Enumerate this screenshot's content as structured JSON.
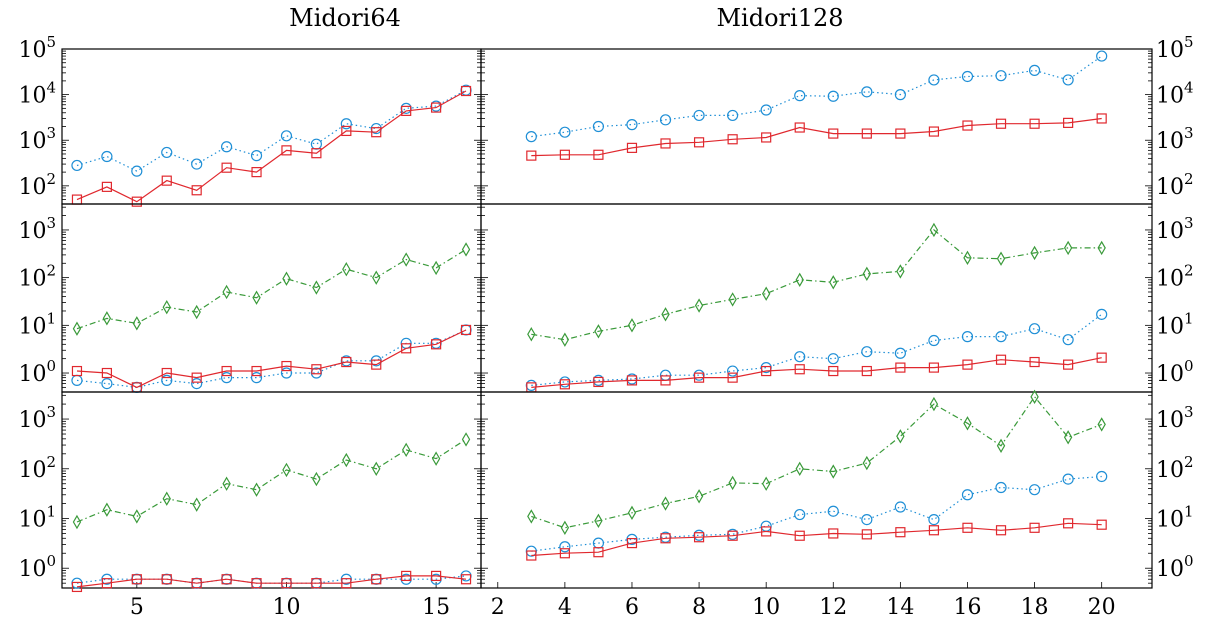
{
  "titles": {
    "left": "Midori64",
    "right": "Midori128"
  },
  "colors": {
    "blue": "#1f8fd6",
    "red": "#e0282e",
    "green": "#3a9a3a",
    "axis": "#000000"
  },
  "chart_data": [
    {
      "type": "line",
      "panel": "left-top",
      "yscale": "log",
      "ylim": [
        40,
        100000
      ],
      "xlim": [
        2.5,
        16.5
      ],
      "yticks": [
        {
          "v": 100,
          "m": "2"
        },
        {
          "v": 1000,
          "m": "3"
        },
        {
          "v": 10000,
          "m": "4"
        },
        {
          "v": 100000,
          "m": "5"
        }
      ],
      "ytick_side": "left",
      "xtick_labels": false,
      "series": [
        {
          "color": "blue",
          "marker": "circle",
          "dash": "dotted",
          "x": [
            3,
            4,
            5,
            6,
            7,
            8,
            9,
            10,
            11,
            12,
            13,
            14,
            15,
            16
          ],
          "y": [
            280,
            440,
            210,
            540,
            300,
            720,
            460,
            1250,
            820,
            2300,
            1800,
            5000,
            5600,
            12500
          ]
        },
        {
          "color": "red",
          "marker": "square",
          "dash": "solid",
          "x": [
            3,
            4,
            5,
            6,
            7,
            8,
            9,
            10,
            11,
            12,
            13,
            14,
            15,
            16
          ],
          "y": [
            50,
            95,
            45,
            130,
            80,
            250,
            200,
            600,
            520,
            1600,
            1500,
            4400,
            5200,
            12000
          ]
        }
      ]
    },
    {
      "type": "line",
      "panel": "right-top",
      "yscale": "log",
      "ylim": [
        40,
        100000
      ],
      "xlim": [
        1.5,
        21.5
      ],
      "yticks": [
        {
          "v": 100,
          "m": "2"
        },
        {
          "v": 1000,
          "m": "3"
        },
        {
          "v": 10000,
          "m": "4"
        },
        {
          "v": 100000,
          "m": "5"
        }
      ],
      "ytick_side": "right",
      "xtick_labels": false,
      "series": [
        {
          "color": "blue",
          "marker": "circle",
          "dash": "dotted",
          "x": [
            3,
            4,
            5,
            6,
            7,
            8,
            9,
            10,
            11,
            12,
            13,
            14,
            15,
            16,
            17,
            18,
            19,
            20
          ],
          "y": [
            1200,
            1500,
            2000,
            2200,
            2800,
            3500,
            3500,
            4600,
            9500,
            9200,
            11500,
            10000,
            21000,
            25000,
            26000,
            34000,
            21000,
            70000
          ]
        },
        {
          "color": "red",
          "marker": "square",
          "dash": "solid",
          "x": [
            3,
            4,
            5,
            6,
            7,
            8,
            9,
            10,
            11,
            12,
            13,
            14,
            15,
            16,
            17,
            18,
            19,
            20
          ],
          "y": [
            460,
            480,
            480,
            680,
            850,
            900,
            1050,
            1150,
            1900,
            1400,
            1400,
            1400,
            1550,
            2100,
            2300,
            2300,
            2400,
            3000
          ]
        }
      ]
    },
    {
      "type": "line",
      "panel": "left-middle",
      "yscale": "log",
      "ylim": [
        0.4,
        3500
      ],
      "xlim": [
        2.5,
        16.5
      ],
      "yticks": [
        {
          "v": 1,
          "m": "0"
        },
        {
          "v": 10,
          "m": "1"
        },
        {
          "v": 100,
          "m": "2"
        },
        {
          "v": 1000,
          "m": "3"
        }
      ],
      "ytick_side": "left",
      "xtick_labels": false,
      "series": [
        {
          "color": "green",
          "marker": "diamond",
          "dash": "dashdot",
          "x": [
            3,
            4,
            5,
            6,
            7,
            8,
            9,
            10,
            11,
            12,
            13,
            14,
            15,
            16
          ],
          "y": [
            8.5,
            14,
            11,
            24,
            19,
            50,
            38,
            95,
            62,
            150,
            100,
            240,
            160,
            390
          ]
        },
        {
          "color": "blue",
          "marker": "circle",
          "dash": "dotted",
          "x": [
            3,
            4,
            5,
            6,
            7,
            8,
            9,
            10,
            11,
            12,
            13,
            14,
            15,
            16
          ],
          "y": [
            0.7,
            0.6,
            0.5,
            0.7,
            0.6,
            0.8,
            0.8,
            1.0,
            1.0,
            1.8,
            1.8,
            4.2,
            4.2,
            8.0
          ]
        },
        {
          "color": "red",
          "marker": "square",
          "dash": "solid",
          "x": [
            3,
            4,
            5,
            6,
            7,
            8,
            9,
            10,
            11,
            12,
            13,
            14,
            15,
            16
          ],
          "y": [
            1.1,
            1.0,
            0.5,
            1.0,
            0.8,
            1.1,
            1.1,
            1.4,
            1.2,
            1.7,
            1.5,
            3.3,
            4.0,
            8.0
          ]
        }
      ]
    },
    {
      "type": "line",
      "panel": "right-middle",
      "yscale": "log",
      "ylim": [
        0.4,
        3500
      ],
      "xlim": [
        1.5,
        21.5
      ],
      "yticks": [
        {
          "v": 1,
          "m": "0"
        },
        {
          "v": 10,
          "m": "1"
        },
        {
          "v": 100,
          "m": "2"
        },
        {
          "v": 1000,
          "m": "3"
        }
      ],
      "ytick_side": "right",
      "xtick_labels": false,
      "series": [
        {
          "color": "green",
          "marker": "diamond",
          "dash": "dashdot",
          "x": [
            3,
            4,
            5,
            6,
            7,
            8,
            9,
            10,
            11,
            12,
            13,
            14,
            15,
            16,
            17,
            18,
            19,
            20
          ],
          "y": [
            6.5,
            5.0,
            7.5,
            10,
            17,
            26,
            35,
            46,
            90,
            80,
            120,
            135,
            1000,
            260,
            250,
            330,
            420,
            420
          ]
        },
        {
          "color": "blue",
          "marker": "circle",
          "dash": "dotted",
          "x": [
            3,
            4,
            5,
            6,
            7,
            8,
            9,
            10,
            11,
            12,
            13,
            14,
            15,
            16,
            17,
            18,
            19,
            20
          ],
          "y": [
            0.55,
            0.65,
            0.7,
            0.75,
            0.9,
            0.9,
            1.1,
            1.3,
            2.2,
            2.0,
            2.8,
            2.6,
            4.8,
            5.8,
            5.8,
            8.5,
            5.0,
            17
          ]
        },
        {
          "color": "red",
          "marker": "square",
          "dash": "solid",
          "x": [
            3,
            4,
            5,
            6,
            7,
            8,
            9,
            10,
            11,
            12,
            13,
            14,
            15,
            16,
            17,
            18,
            19,
            20
          ],
          "y": [
            0.5,
            0.58,
            0.65,
            0.7,
            0.7,
            0.8,
            0.8,
            1.1,
            1.2,
            1.1,
            1.1,
            1.3,
            1.3,
            1.5,
            1.9,
            1.7,
            1.5,
            2.1
          ]
        }
      ]
    },
    {
      "type": "line",
      "panel": "left-bottom",
      "yscale": "log",
      "ylim": [
        0.4,
        3500
      ],
      "xlim": [
        2.5,
        16.5
      ],
      "yticks": [
        {
          "v": 1,
          "m": "0"
        },
        {
          "v": 10,
          "m": "1"
        },
        {
          "v": 100,
          "m": "2"
        },
        {
          "v": 1000,
          "m": "3"
        }
      ],
      "ytick_side": "left",
      "xtick_labels": true,
      "xticks": [
        5,
        10,
        15
      ],
      "series": [
        {
          "color": "green",
          "marker": "diamond",
          "dash": "dashdot",
          "x": [
            3,
            4,
            5,
            6,
            7,
            8,
            9,
            10,
            11,
            12,
            13,
            14,
            15,
            16
          ],
          "y": [
            8.5,
            15,
            11,
            25,
            19,
            50,
            38,
            95,
            62,
            150,
            100,
            240,
            160,
            390
          ]
        },
        {
          "color": "blue",
          "marker": "circle",
          "dash": "dotted",
          "x": [
            3,
            4,
            5,
            6,
            7,
            8,
            9,
            10,
            11,
            12,
            13,
            14,
            15,
            16
          ],
          "y": [
            0.5,
            0.6,
            0.6,
            0.6,
            0.5,
            0.6,
            0.5,
            0.5,
            0.5,
            0.6,
            0.6,
            0.6,
            0.6,
            0.7
          ]
        },
        {
          "color": "red",
          "marker": "square",
          "dash": "solid",
          "x": [
            3,
            4,
            5,
            6,
            7,
            8,
            9,
            10,
            11,
            12,
            13,
            14,
            15,
            16
          ],
          "y": [
            0.42,
            0.5,
            0.6,
            0.6,
            0.5,
            0.6,
            0.5,
            0.5,
            0.5,
            0.5,
            0.6,
            0.7,
            0.7,
            0.6
          ]
        }
      ]
    },
    {
      "type": "line",
      "panel": "right-bottom",
      "yscale": "log",
      "ylim": [
        0.4,
        3500
      ],
      "xlim": [
        1.5,
        21.5
      ],
      "yticks": [
        {
          "v": 1,
          "m": "0"
        },
        {
          "v": 10,
          "m": "1"
        },
        {
          "v": 100,
          "m": "2"
        },
        {
          "v": 1000,
          "m": "3"
        }
      ],
      "ytick_side": "right",
      "xtick_labels": true,
      "xticks": [
        2,
        4,
        6,
        8,
        10,
        12,
        14,
        16,
        18,
        20
      ],
      "series": [
        {
          "color": "green",
          "marker": "diamond",
          "dash": "dashdot",
          "x": [
            3,
            4,
            5,
            6,
            7,
            8,
            9,
            10,
            11,
            12,
            13,
            14,
            15,
            16,
            17,
            18,
            19,
            20
          ],
          "y": [
            11,
            6.5,
            9,
            13,
            20,
            28,
            52,
            50,
            100,
            88,
            130,
            450,
            2000,
            820,
            290,
            2800,
            430,
            780
          ]
        },
        {
          "color": "blue",
          "marker": "circle",
          "dash": "dotted",
          "x": [
            3,
            4,
            5,
            6,
            7,
            8,
            9,
            10,
            11,
            12,
            13,
            14,
            15,
            16,
            17,
            18,
            19,
            20
          ],
          "y": [
            2.2,
            2.7,
            3.2,
            3.8,
            4.2,
            4.6,
            4.8,
            7.0,
            12,
            14,
            9.5,
            17,
            9.5,
            30,
            42,
            38,
            62,
            70
          ]
        },
        {
          "color": "red",
          "marker": "square",
          "dash": "solid",
          "x": [
            3,
            4,
            5,
            6,
            7,
            8,
            9,
            10,
            11,
            12,
            13,
            14,
            15,
            16,
            17,
            18,
            19,
            20
          ],
          "y": [
            1.8,
            2.0,
            2.1,
            3.2,
            4.0,
            4.2,
            4.5,
            5.5,
            4.5,
            5.0,
            4.8,
            5.3,
            5.8,
            6.5,
            5.8,
            6.5,
            8.0,
            7.5
          ]
        }
      ]
    }
  ]
}
